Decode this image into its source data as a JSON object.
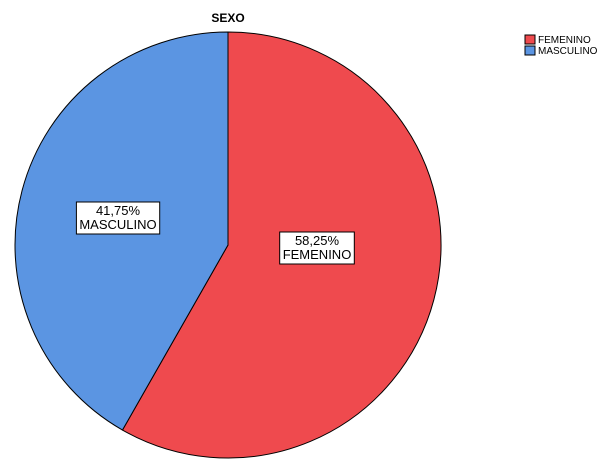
{
  "chart_data": {
    "type": "pie",
    "title": "SEXO",
    "legend_position": "top-right",
    "slices": [
      {
        "label": "FEMENINO",
        "value": 58.25,
        "value_text": "58,25%",
        "color": "#ef4a4e"
      },
      {
        "label": "MASCULINO",
        "value": 41.75,
        "value_text": "41,75%",
        "color": "#5b95e2"
      }
    ],
    "edge_color": "#000000"
  }
}
